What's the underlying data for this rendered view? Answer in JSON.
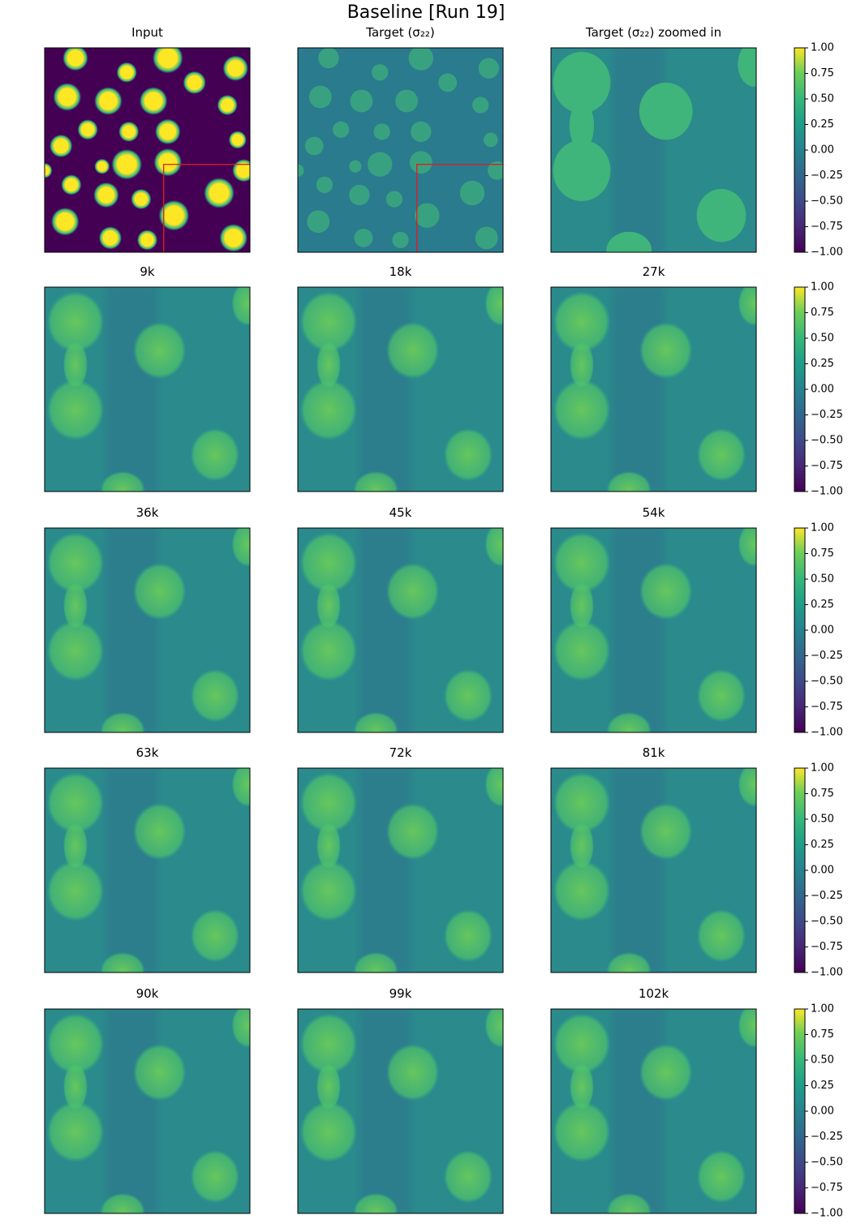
{
  "chart_data": {
    "type": "image-grid",
    "title": "Baseline [Run 19]",
    "panels": [
      {
        "title": "Input"
      },
      {
        "title": "Target (σ₂₂)"
      },
      {
        "title": "Target (σ₂₂) zoomed in"
      },
      {
        "title": "9k"
      },
      {
        "title": "18k"
      },
      {
        "title": "27k"
      },
      {
        "title": "36k"
      },
      {
        "title": "45k"
      },
      {
        "title": "54k"
      },
      {
        "title": "63k"
      },
      {
        "title": "72k"
      },
      {
        "title": "81k"
      },
      {
        "title": "90k"
      },
      {
        "title": "99k"
      },
      {
        "title": "102k"
      }
    ],
    "colorbars": [
      {
        "ylim": [
          -1,
          1
        ],
        "yticks": [
          {
            "value": -1,
            "label": "−1.00"
          },
          {
            "value": -0.75,
            "label": "−0.75"
          },
          {
            "value": -0.5,
            "label": "−0.50"
          },
          {
            "value": -0.25,
            "label": "−0.25"
          },
          {
            "value": 0,
            "label": "0.00"
          },
          {
            "value": 0.25,
            "label": "0.25"
          },
          {
            "value": 0.5,
            "label": "0.50"
          },
          {
            "value": 0.75,
            "label": "0.75"
          },
          {
            "value": 1,
            "label": "1.00"
          }
        ]
      },
      {
        "ylim": [
          -1,
          1
        ],
        "yticks": [
          {
            "value": -1,
            "label": "−1.00"
          },
          {
            "value": -0.75,
            "label": "−0.75"
          },
          {
            "value": -0.5,
            "label": "−0.50"
          },
          {
            "value": -0.25,
            "label": "−0.25"
          },
          {
            "value": 0,
            "label": "0.00"
          },
          {
            "value": 0.25,
            "label": "0.25"
          },
          {
            "value": 0.5,
            "label": "0.50"
          },
          {
            "value": 0.75,
            "label": "0.75"
          },
          {
            "value": 1,
            "label": "1.00"
          }
        ]
      },
      {
        "ylim": [
          -1,
          1
        ],
        "yticks": [
          {
            "value": -1,
            "label": "−1.00"
          },
          {
            "value": -0.75,
            "label": "−0.75"
          },
          {
            "value": -0.5,
            "label": "−0.50"
          },
          {
            "value": -0.25,
            "label": "−0.25"
          },
          {
            "value": 0,
            "label": "0.00"
          },
          {
            "value": 0.25,
            "label": "0.25"
          },
          {
            "value": 0.5,
            "label": "0.50"
          },
          {
            "value": 0.75,
            "label": "0.75"
          },
          {
            "value": 1,
            "label": "1.00"
          }
        ]
      },
      {
        "ylim": [
          -1,
          1
        ],
        "yticks": [
          {
            "value": -1,
            "label": "−1.00"
          },
          {
            "value": -0.75,
            "label": "−0.75"
          },
          {
            "value": -0.5,
            "label": "−0.50"
          },
          {
            "value": -0.25,
            "label": "−0.25"
          },
          {
            "value": 0,
            "label": "0.00"
          },
          {
            "value": 0.25,
            "label": "0.25"
          },
          {
            "value": 0.5,
            "label": "0.50"
          },
          {
            "value": 0.75,
            "label": "0.75"
          },
          {
            "value": 1,
            "label": "1.00"
          }
        ]
      },
      {
        "ylim": [
          -1,
          1
        ],
        "yticks": [
          {
            "value": -1,
            "label": "−1.00"
          },
          {
            "value": -0.75,
            "label": "−0.75"
          },
          {
            "value": -0.5,
            "label": "−0.50"
          },
          {
            "value": -0.25,
            "label": "−0.25"
          },
          {
            "value": 0,
            "label": "0.00"
          },
          {
            "value": 0.25,
            "label": "0.25"
          },
          {
            "value": 0.5,
            "label": "0.50"
          },
          {
            "value": 0.75,
            "label": "0.75"
          },
          {
            "value": 1,
            "label": "1.00"
          }
        ]
      }
    ]
  }
}
